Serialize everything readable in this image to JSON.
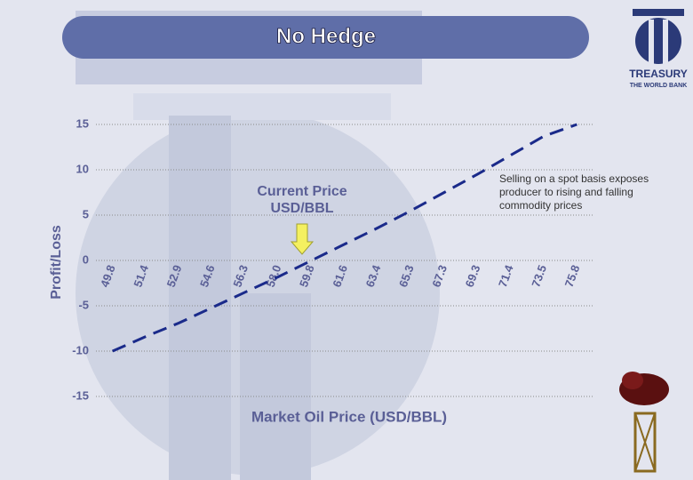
{
  "chart_data": {
    "type": "line",
    "title": "No Hedge",
    "xlabel": "Market Oil Price (USD/BBL)",
    "ylabel": "Profit/Loss",
    "annotation": "Current Price USD/BBL",
    "note": [
      "Selling on a spot basis exposes",
      "producer to rising and falling",
      "commodity prices"
    ],
    "logo": [
      "TREASURY",
      "THE WORLD BANK"
    ],
    "categories": [
      "49.8",
      "51.4",
      "52.9",
      "54.6",
      "56.3",
      "58.0",
      "59.8",
      "61.6",
      "63.4",
      "65.3",
      "67.3",
      "69.3",
      "71.4",
      "73.5",
      "75.8"
    ],
    "series": [
      {
        "name": "No Hedge",
        "color": "#1a2a8a",
        "values": [
          -10,
          -8.4,
          -6.9,
          -5.2,
          -3.5,
          -1.8,
          0,
          1.8,
          3.6,
          5.5,
          7.5,
          9.5,
          11.6,
          13.7,
          15
        ]
      }
    ],
    "ylim": [
      -15,
      15
    ],
    "yticks": [
      -15,
      -10,
      -5,
      0,
      5,
      10,
      15
    ],
    "grid": true
  }
}
